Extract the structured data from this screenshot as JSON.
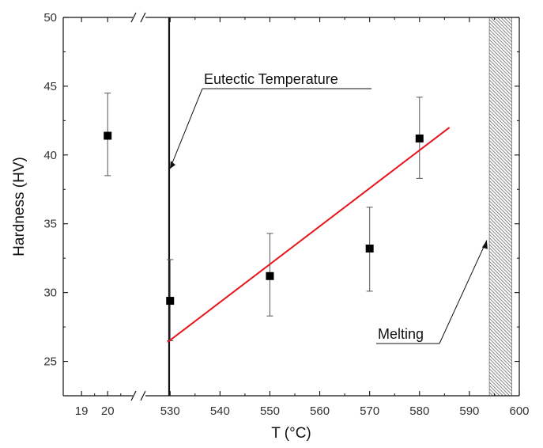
{
  "chart_data": {
    "type": "scatter",
    "xlabel": "T (°C)",
    "ylabel": "Hardness (HV)",
    "ylim": [
      22.5,
      50
    ],
    "x_break": {
      "before": 20,
      "after": 530
    },
    "xticks": [
      {
        "label": "19",
        "value": 19
      },
      {
        "label": "20",
        "value": 20
      },
      {
        "label": "530",
        "value": 530
      },
      {
        "label": "540",
        "value": 540
      },
      {
        "label": "550",
        "value": 550
      },
      {
        "label": "560",
        "value": 560
      },
      {
        "label": "570",
        "value": 570
      },
      {
        "label": "580",
        "value": 580
      },
      {
        "label": "590",
        "value": 590
      },
      {
        "label": "600",
        "value": 600
      }
    ],
    "yticks": [
      25,
      30,
      35,
      40,
      45,
      50
    ],
    "grid": false,
    "series": [
      {
        "type": "scatter",
        "marker": "square",
        "color": "#000000",
        "points": [
          {
            "x": 20,
            "y": 41.4,
            "err_low": 38.5,
            "err_high": 44.5
          },
          {
            "x": 530,
            "y": 29.4,
            "err_low": 26.5,
            "err_high": 32.4
          },
          {
            "x": 550,
            "y": 31.2,
            "err_low": 28.3,
            "err_high": 34.3
          },
          {
            "x": 570,
            "y": 33.2,
            "err_low": 30.1,
            "err_high": 36.2
          },
          {
            "x": 580,
            "y": 41.2,
            "err_low": 38.3,
            "err_high": 44.2
          }
        ]
      },
      {
        "type": "line",
        "color": "#e8141b",
        "x": [
          529.5,
          586
        ],
        "y": [
          26.4,
          42.0
        ]
      }
    ],
    "eutectic_line_x": 529.8,
    "melting_band": [
      594,
      598.5
    ],
    "annotations": [
      {
        "text": "Eutectic Temperature",
        "target_x": 529.8,
        "target_y": 39.0
      },
      {
        "text": "Melting",
        "target_x": 593.8,
        "target_y": 33.8
      }
    ]
  }
}
